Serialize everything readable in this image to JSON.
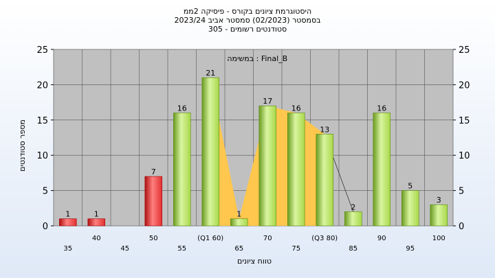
{
  "chart_data": {
    "type": "bar",
    "title_lines": [
      "היסטוגרמת ציונים בקורס - פיסיקה 2ממ",
      "בסמסטר  (02/2023)  סמסטר אביב 2023/24",
      "סטודנטים רשומים - 305"
    ],
    "annotation": "במשימה : Final_B",
    "ylabel": "מספר סטודנטים",
    "xlabel": "טווח ציונים",
    "ylim": [
      0,
      25
    ],
    "yticks": [
      "0",
      "5",
      "10",
      "15",
      "20",
      "25"
    ],
    "grid": true,
    "categories": [
      "35",
      "40",
      "45",
      "50",
      "55",
      "(Q1 60)",
      "65",
      "70",
      "75",
      "(Q3 80)",
      "85",
      "90",
      "95",
      "100"
    ],
    "values": [
      1,
      1,
      0,
      7,
      16,
      21,
      1,
      17,
      16,
      13,
      2,
      16,
      5,
      3
    ],
    "value_labels": [
      "1",
      "1",
      "",
      "7",
      "16",
      "21",
      "1",
      "17",
      "16",
      "13",
      "2",
      "16",
      "5",
      "3"
    ],
    "bar_colors": [
      "red",
      "red",
      "red",
      "red",
      "green",
      "green",
      "green",
      "green",
      "green",
      "green",
      "green",
      "green",
      "green",
      "green"
    ],
    "highlight_area": {
      "from_index": 5,
      "to_index": 9,
      "color": "#ffc74d"
    },
    "colors": {
      "plot_bg": "#c0c0c0",
      "red_light": "#ff8080",
      "red": "#e03030",
      "red_dark": "#b01010",
      "green_light": "#d9f5a0",
      "green": "#a8d84a",
      "green_dark": "#6a9a20"
    }
  }
}
